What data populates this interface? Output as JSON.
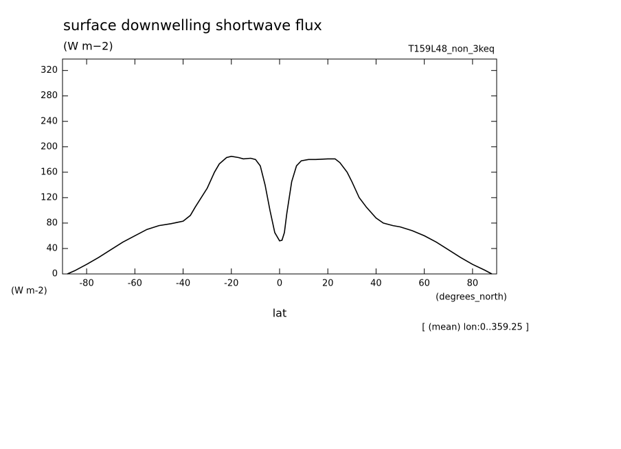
{
  "chart_data": {
    "type": "line",
    "title": "surface downwelling shortwave flux",
    "units": "(W m−2)",
    "run_label": "T159L48_non_3keq",
    "y_axis_label": "(W m-2)",
    "x_axis_units": "(degrees_north)",
    "x_axis_label": "lat",
    "footnote": "[ (mean) lon:0..359.25 ]",
    "x": [
      -88,
      -85,
      -80,
      -75,
      -70,
      -65,
      -60,
      -55,
      -50,
      -45,
      -40,
      -37,
      -35,
      -30,
      -27,
      -25,
      -22,
      -20,
      -17,
      -15,
      -12,
      -10,
      -8,
      -6,
      -4,
      -2,
      0,
      1,
      2,
      3,
      5,
      7,
      9,
      12,
      15,
      20,
      23,
      25,
      28,
      30,
      33,
      36,
      40,
      43,
      47,
      50,
      55,
      60,
      65,
      70,
      75,
      80,
      85,
      88
    ],
    "series": [
      {
        "color": "#000000",
        "values": [
          0,
          5,
          15,
          26,
          38,
          50,
          60,
          70,
          76,
          79,
          83,
          92,
          105,
          135,
          160,
          173,
          183,
          185,
          183,
          181,
          182,
          180,
          170,
          140,
          100,
          65,
          52,
          53,
          65,
          95,
          145,
          170,
          178,
          180,
          180,
          181,
          181,
          175,
          160,
          145,
          120,
          105,
          88,
          80,
          76,
          74,
          68,
          60,
          50,
          38,
          26,
          15,
          6,
          0
        ]
      }
    ],
    "xlim": [
      -90,
      90
    ],
    "xticks": [
      -80,
      -60,
      -40,
      -20,
      0,
      20,
      40,
      60,
      80
    ],
    "ylim": [
      0,
      338
    ],
    "yticks": [
      0,
      40,
      80,
      120,
      160,
      200,
      240,
      280,
      320
    ]
  }
}
